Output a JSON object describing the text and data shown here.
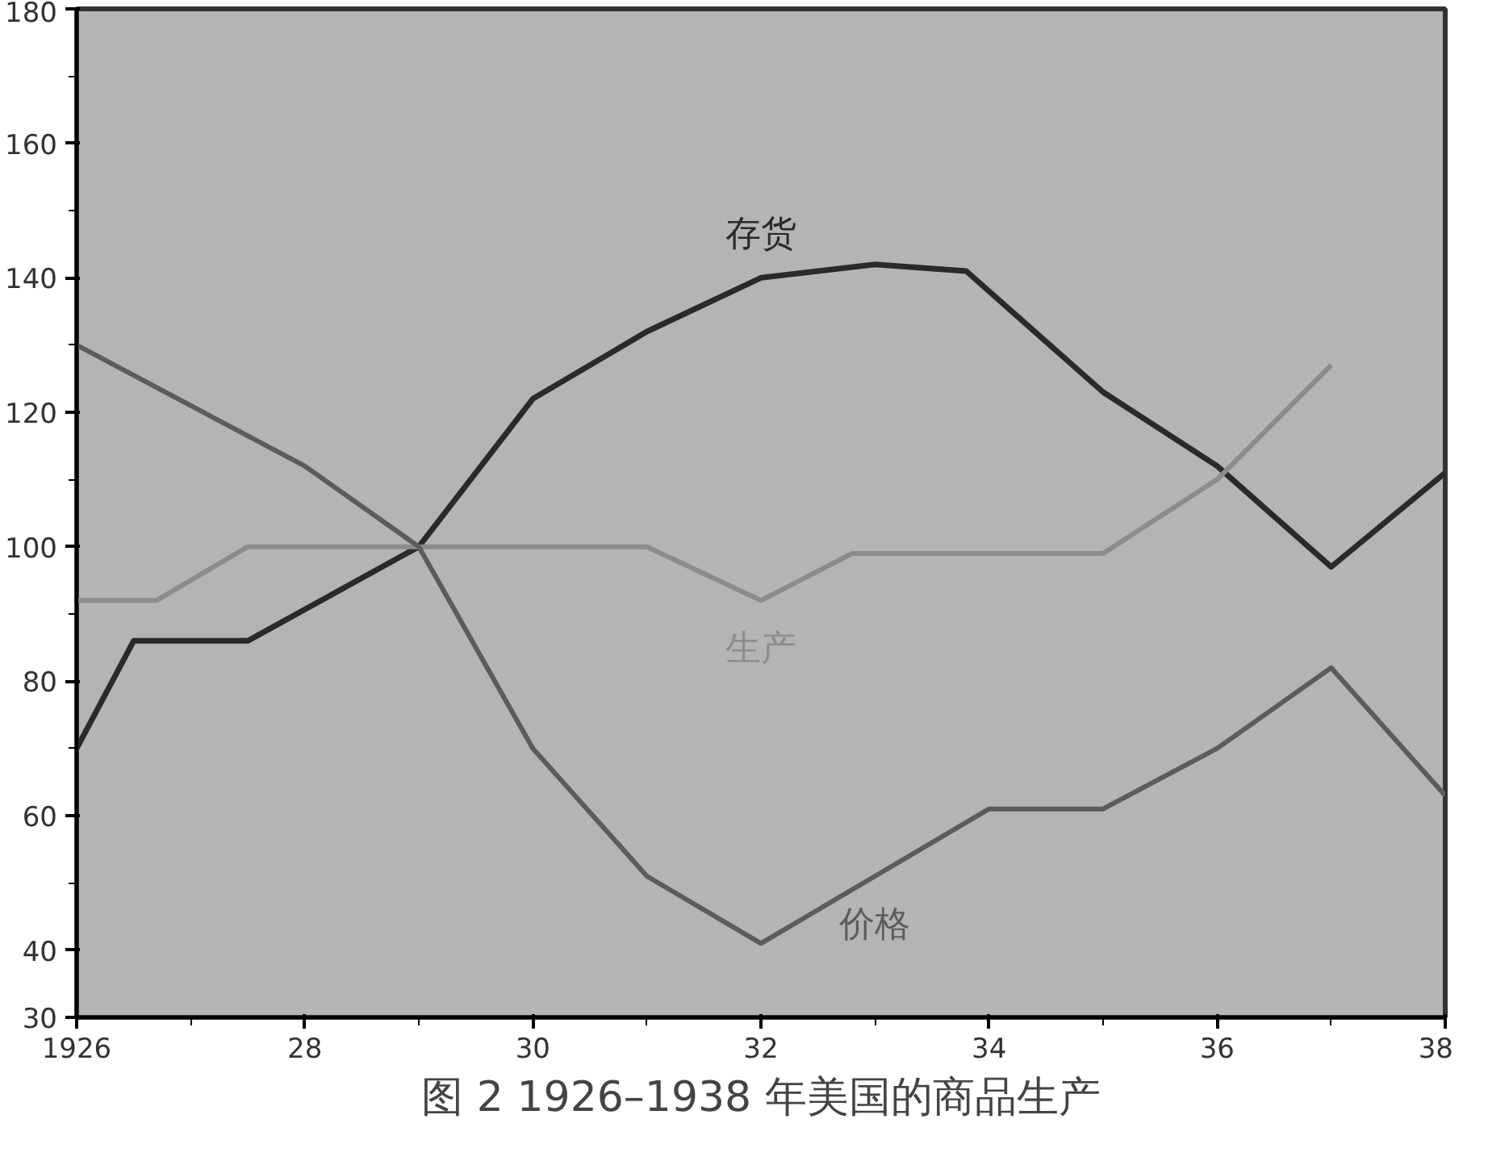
{
  "chart_data": {
    "type": "line",
    "title": "图 2 1926–1938 年美国的商品生产",
    "series": [
      {
        "name": "存货",
        "color": "#2a2a2a",
        "x": [
          1926,
          1926.5,
          1927.5,
          1929,
          1930,
          1931,
          1932,
          1933,
          1933.8,
          1935,
          1936,
          1937,
          1938
        ],
        "values": [
          70,
          86,
          86,
          100,
          122,
          132,
          140,
          142,
          141,
          123,
          112,
          97,
          111
        ]
      },
      {
        "name": "生产",
        "color": "#8c8c8c",
        "x": [
          1926,
          1926.7,
          1927.5,
          1931,
          1932,
          1932.8,
          1935,
          1936,
          1937
        ],
        "values": [
          92,
          92,
          100,
          100,
          92,
          99,
          99,
          110,
          127
        ]
      },
      {
        "name": "价格",
        "color": "#5c5c5c",
        "x": [
          1926,
          1928,
          1929,
          1930,
          1931,
          1932,
          1933,
          1934,
          1935,
          1936,
          1937,
          1938
        ],
        "values": [
          130,
          112,
          100,
          70,
          51,
          41,
          51,
          61,
          61,
          70,
          82,
          63
        ]
      }
    ],
    "xlim": [
      1926,
      1938
    ],
    "xticks": [
      {
        "value": 1926,
        "label": "1926"
      },
      {
        "value": 1927,
        "label": null
      },
      {
        "value": 1928,
        "label": "28"
      },
      {
        "value": 1929,
        "label": null
      },
      {
        "value": 1930,
        "label": "30"
      },
      {
        "value": 1931,
        "label": null
      },
      {
        "value": 1932,
        "label": "32"
      },
      {
        "value": 1933,
        "label": null
      },
      {
        "value": 1934,
        "label": "34"
      },
      {
        "value": 1935,
        "label": null
      },
      {
        "value": 1936,
        "label": "36"
      },
      {
        "value": 1937,
        "label": null
      },
      {
        "value": 1938,
        "label": "38"
      }
    ],
    "ylim": [
      30,
      180
    ],
    "yticks": [
      30,
      40,
      {
        "value": 50,
        "label": null
      },
      60,
      {
        "value": 70,
        "label": null
      },
      80,
      {
        "value": 90,
        "label": null
      },
      100,
      {
        "value": 110,
        "label": null
      },
      120,
      {
        "value": 130,
        "label": null
      },
      140,
      {
        "value": 150,
        "label": null
      },
      160,
      {
        "value": 170,
        "label": null
      },
      180
    ],
    "grid": false,
    "marker": "none",
    "line_style": "solid"
  }
}
